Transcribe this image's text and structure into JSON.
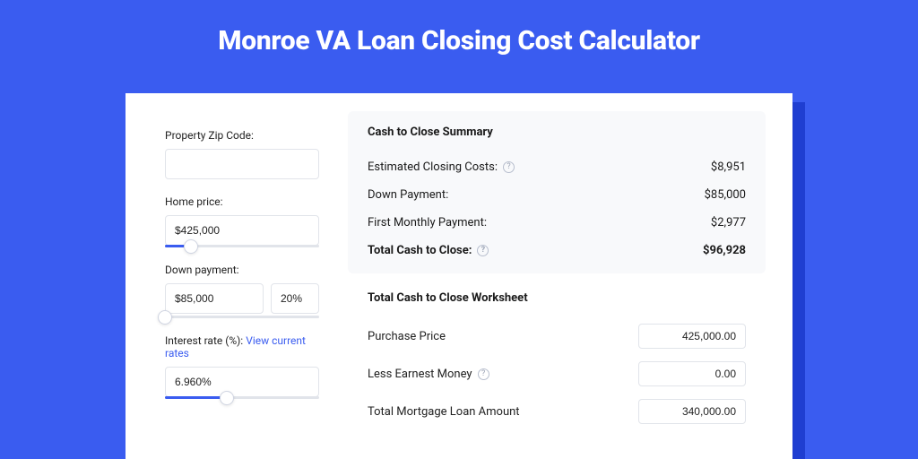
{
  "colors": {
    "page_bg": "#3a5cf0",
    "card_bg": "#ffffff",
    "card_shadow": "#1f3ed1",
    "panel_bg": "#f8f9fb",
    "border": "#e1e4ea",
    "text": "#1a1a1a",
    "link": "#3a5cf0",
    "slider_fill": "#3a5cf0",
    "help_border": "#b8bfce",
    "help_text": "#9aa2b4"
  },
  "title": "Monroe VA Loan Closing Cost Calculator",
  "left": {
    "zip_label": "Property Zip Code:",
    "zip_value": "",
    "home_price_label": "Home price:",
    "home_price_value": "$425,000",
    "home_price_slider": {
      "fill_pct": 17,
      "thumb_pct": 17
    },
    "down_payment_label": "Down payment:",
    "down_payment_value": "$85,000",
    "down_payment_pct": "20%",
    "down_payment_slider": {
      "fill_pct": 0,
      "thumb_pct": 0
    },
    "interest_label": "Interest rate (%): ",
    "interest_link": "View current rates",
    "interest_value": "6.960%",
    "interest_slider": {
      "fill_pct": 40,
      "thumb_pct": 40
    }
  },
  "summary": {
    "title": "Cash to Close Summary",
    "rows": [
      {
        "label": "Estimated Closing Costs:",
        "help": true,
        "value": "$8,951",
        "bold": false
      },
      {
        "label": "Down Payment:",
        "help": false,
        "value": "$85,000",
        "bold": false
      },
      {
        "label": "First Monthly Payment:",
        "help": false,
        "value": "$2,977",
        "bold": false
      },
      {
        "label": "Total Cash to Close:",
        "help": true,
        "value": "$96,928",
        "bold": true
      }
    ]
  },
  "worksheet": {
    "title": "Total Cash to Close Worksheet",
    "rows": [
      {
        "label": "Purchase Price",
        "help": false,
        "value": "425,000.00"
      },
      {
        "label": "Less Earnest Money",
        "help": true,
        "value": "0.00"
      },
      {
        "label": "Total Mortgage Loan Amount",
        "help": false,
        "value": "340,000.00"
      }
    ]
  }
}
